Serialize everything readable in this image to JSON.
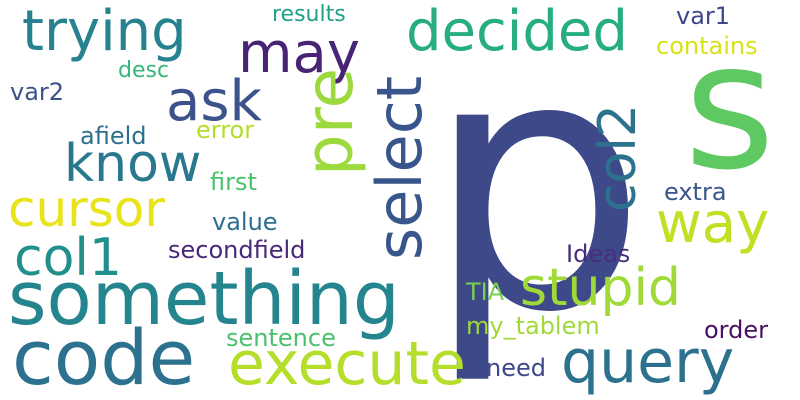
{
  "words": [
    {
      "text": "p",
      "color": "#3e4989"
    },
    {
      "text": "s",
      "color": "#5ec962"
    },
    {
      "text": "something",
      "color": "#25858e"
    },
    {
      "text": "code",
      "color": "#2c718e"
    },
    {
      "text": "execute",
      "color": "#b5de2b"
    },
    {
      "text": "query",
      "color": "#2c728e"
    },
    {
      "text": "trying",
      "color": "#26828e"
    },
    {
      "text": "decided",
      "color": "#27ad81"
    },
    {
      "text": "may",
      "color": "#482475"
    },
    {
      "text": "ask",
      "color": "#3b528b"
    },
    {
      "text": "know",
      "color": "#2a788e"
    },
    {
      "text": "cursor",
      "color": "#e8e419"
    },
    {
      "text": "pre",
      "color": "#9bd93c"
    },
    {
      "text": "select",
      "color": "#39568c"
    },
    {
      "text": "col2",
      "color": "#2c728e"
    },
    {
      "text": "col1",
      "color": "#21908d"
    },
    {
      "text": "way",
      "color": "#c2df23"
    },
    {
      "text": "stupid",
      "color": "#a0da39"
    },
    {
      "text": "results",
      "color": "#1fa187"
    },
    {
      "text": "var1",
      "color": "#3e4989"
    },
    {
      "text": "contains",
      "color": "#d8e219"
    },
    {
      "text": "desc",
      "color": "#35b779"
    },
    {
      "text": "var2",
      "color": "#3b528b"
    },
    {
      "text": "afield",
      "color": "#2d708e"
    },
    {
      "text": "error",
      "color": "#b5de2b"
    },
    {
      "text": "first",
      "color": "#4ac16d"
    },
    {
      "text": "value",
      "color": "#2e6e8e"
    },
    {
      "text": "extra",
      "color": "#39568c"
    },
    {
      "text": "secondfield",
      "color": "#482878"
    },
    {
      "text": "Ideas",
      "color": "#472d7b"
    },
    {
      "text": "TIA",
      "color": "#7ad151"
    },
    {
      "text": "my_tablem",
      "color": "#a0da39"
    },
    {
      "text": "sentence",
      "color": "#4ac16d"
    },
    {
      "text": "order",
      "color": "#471063"
    },
    {
      "text": "need",
      "color": "#3e4989"
    }
  ]
}
